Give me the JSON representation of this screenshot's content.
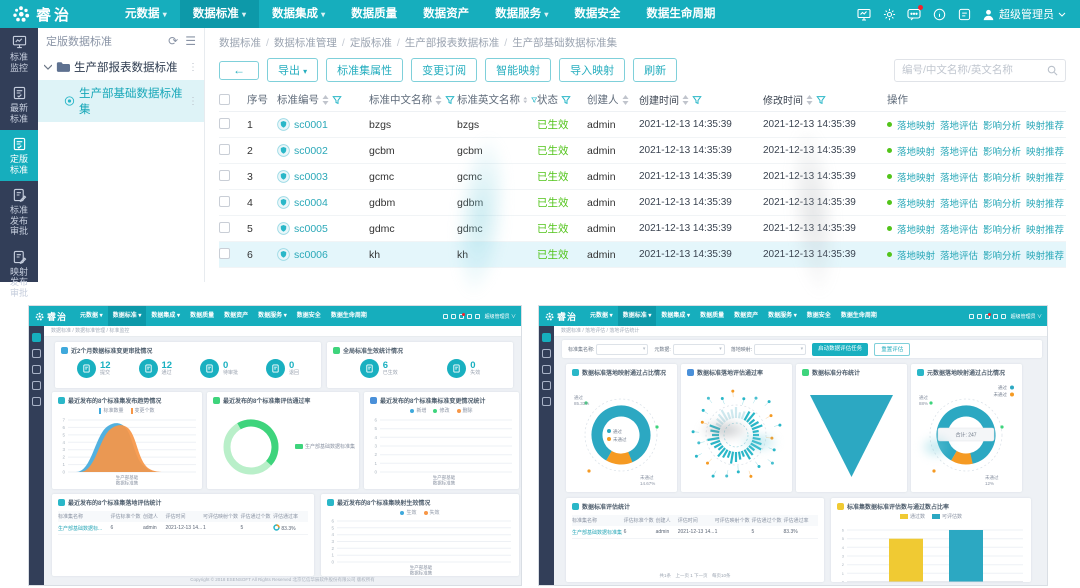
{
  "colors": {
    "teal": "#16aebd",
    "teal_dark": "#0d99a9",
    "navy": "#323e58",
    "link": "#2aa8b8",
    "status_green": "#52c41a",
    "orange": "#f59a23",
    "yellow": "#f0ca33",
    "chart_blue": "#3fa9dc",
    "chart_green": "#3ed47c",
    "donut_teal": "#2ca8c2",
    "row_highlight": "#e4f6fb"
  },
  "app": {
    "brand": "睿治",
    "nav": [
      {
        "label": "元数据",
        "caret": true,
        "active": false
      },
      {
        "label": "数据标准",
        "caret": true,
        "active": true
      },
      {
        "label": "数据集成",
        "caret": true,
        "active": false
      },
      {
        "label": "数据质量",
        "caret": false,
        "active": false
      },
      {
        "label": "数据资产",
        "caret": false,
        "active": false
      },
      {
        "label": "数据服务",
        "caret": true,
        "active": false
      },
      {
        "label": "数据安全",
        "caret": false,
        "active": false
      },
      {
        "label": "数据生命周期",
        "caret": false,
        "active": false
      }
    ],
    "user_role": "超级管理员",
    "rail": [
      {
        "label": "标准监控",
        "active": false
      },
      {
        "label": "最新标准",
        "active": false
      },
      {
        "label": "定版标准",
        "active": true
      },
      {
        "label": "标准发布审批",
        "active": false
      },
      {
        "label": "映射发布审批",
        "active": false
      }
    ],
    "tree": {
      "panel_title": "定版数据标准",
      "root": "生产部报表数据标准",
      "child": "生产部基础数据标准集"
    },
    "breadcrumb": [
      "数据标准",
      "数据标准管理",
      "定版标准",
      "生产部报表数据标准",
      "生产部基础数据标准集"
    ],
    "toolbar": {
      "back_label": "←",
      "export_label": "导出",
      "buttons": [
        "标准集属性",
        "变更订阅",
        "智能映射",
        "导入映射",
        "刷新"
      ],
      "search_placeholder": "编号/中文名称/英文名称"
    },
    "table": {
      "headers": [
        "序号",
        "标准编号",
        "标准中文名称",
        "标准英文名称",
        "状态",
        "创建人",
        "创建时间",
        "修改时间",
        "操作"
      ],
      "op_links": [
        "落地映射",
        "落地评估",
        "影响分析",
        "映射推荐"
      ],
      "rows": [
        {
          "no": "1",
          "code": "sc0001",
          "cn": "bzgs",
          "en": "bzgs",
          "status": "已生效",
          "creator": "admin",
          "created": "2021-12-13 14:35:39",
          "modified": "2021-12-13 14:35:39",
          "highlight": false
        },
        {
          "no": "2",
          "code": "sc0002",
          "cn": "gcbm",
          "en": "gcbm",
          "status": "已生效",
          "creator": "admin",
          "created": "2021-12-13 14:35:39",
          "modified": "2021-12-13 14:35:39",
          "highlight": false
        },
        {
          "no": "3",
          "code": "sc0003",
          "cn": "gcmc",
          "en": "gcmc",
          "status": "已生效",
          "creator": "admin",
          "created": "2021-12-13 14:35:39",
          "modified": "2021-12-13 14:35:39",
          "highlight": false
        },
        {
          "no": "4",
          "code": "sc0004",
          "cn": "gdbm",
          "en": "gdbm",
          "status": "已生效",
          "creator": "admin",
          "created": "2021-12-13 14:35:39",
          "modified": "2021-12-13 14:35:39",
          "highlight": false
        },
        {
          "no": "5",
          "code": "sc0005",
          "cn": "gdmc",
          "en": "gdmc",
          "status": "已生效",
          "creator": "admin",
          "created": "2021-12-13 14:35:39",
          "modified": "2021-12-13 14:35:39",
          "highlight": false
        },
        {
          "no": "6",
          "code": "sc0006",
          "cn": "kh",
          "en": "kh",
          "status": "已生效",
          "creator": "admin",
          "created": "2021-12-13 14:35:39",
          "modified": "2021-12-13 14:35:39",
          "highlight": true
        }
      ]
    }
  },
  "dash_left": {
    "breadcrumb": "数据标准 / 数据标准管理 / 标准监控",
    "stat_card1": {
      "title": "近2个月数据标准变更审批情况",
      "stats": [
        {
          "value": "12",
          "label": "提交"
        },
        {
          "value": "12",
          "label": "通过"
        },
        {
          "value": "0",
          "label": "待审批"
        },
        {
          "value": "0",
          "label": "退回"
        }
      ]
    },
    "stat_card2": {
      "title": "全局标准生效统计情况",
      "stats": [
        {
          "value": "6",
          "label": "已生效"
        },
        {
          "value": "0",
          "label": "失效"
        }
      ]
    },
    "area_card": {
      "title": "最近发布的8个标准集发布趋势情况",
      "legend": [
        "标准数量",
        "变更个数"
      ],
      "ymax": 7,
      "x_label": [
        "生产部基础",
        "数据标准集"
      ]
    },
    "donut_card": {
      "title": "最近发布的8个标准集评估通过率",
      "legend": "生产部基础数据标准集",
      "pct": 45
    },
    "bars_card": {
      "title": "最近发布的8个标准集标准变更情况统计",
      "legend": [
        "新增",
        "修改",
        "删除"
      ],
      "ymax": 6,
      "x_label": [
        "生产部基础",
        "数据标准集"
      ]
    },
    "table_card": {
      "title": "最近发布的8个标准集落地评估统计",
      "headers": [
        "标准集名称",
        "评估标准个数",
        "创建人",
        "评估时间",
        "可评估映射个数",
        "评估通过个数",
        "评估通过率"
      ],
      "row": [
        "生产部基础数据标...",
        "6",
        "admin",
        "2021-12-13 14...",
        "1",
        "5",
        "83.3%"
      ]
    },
    "line_card": {
      "title": "最近发布的8个标准集映射生效情况",
      "legend": [
        "生效",
        "失效"
      ],
      "ymax": 6,
      "x_label": [
        "生产部基础",
        "数据标准集"
      ]
    },
    "footer": "Copyright © 2018 ESENSOFT All Rights Reserved 北京亿信华辰软件股份有限公司 版权所有"
  },
  "dash_right": {
    "breadcrumb": "数据标准 / 落地评估 / 落地评估统计",
    "filters": [
      {
        "label": "标准集名称:"
      },
      {
        "label": "元数据:"
      },
      {
        "label": "落地映射:"
      }
    ],
    "buttons": {
      "primary": "启动数据评估任务",
      "secondary": "重置评估"
    },
    "donut1": {
      "title": "数据标准落地映射通过占比情况",
      "slices": [
        {
          "name": "通过",
          "pct": 85.33
        },
        {
          "name": "未通过",
          "pct": 14.67
        }
      ]
    },
    "radial_card": {
      "title": "数据标准落地评估通过率"
    },
    "funnel_card": {
      "title": "数据标准分布统计"
    },
    "donut2": {
      "title": "元数据落地映射通过占比情况",
      "slices": [
        {
          "name": "通过",
          "pct": 88
        },
        {
          "name": "未通过",
          "pct": 12
        }
      ],
      "tooltip": "合计: 247"
    },
    "table_card": {
      "title": "数据标准评估统计",
      "headers": [
        "标准集名称",
        "评估标准个数",
        "创建人",
        "评估时间",
        "可评估映射个数",
        "评估通过个数",
        "评估通过率"
      ],
      "row": [
        "生产部基础数据标准集",
        "6",
        "admin",
        "2021-12-13 14...",
        "1",
        "5",
        "83.3%"
      ],
      "pagination": "共1条　上一页  1  下一页　每页10条"
    },
    "bar_card": {
      "title": "标准集数据标准评估数与通过数占比率",
      "legend": [
        {
          "name": "通过数",
          "color": "#f0ca33"
        },
        {
          "name": "可评估数",
          "color": "#2ca8c2"
        }
      ],
      "categories": [
        "生产部基础数据标准集"
      ],
      "values": [
        5,
        6
      ],
      "ymax": 6,
      "x_label": [
        "生产部基础",
        "数据标准集"
      ]
    }
  }
}
